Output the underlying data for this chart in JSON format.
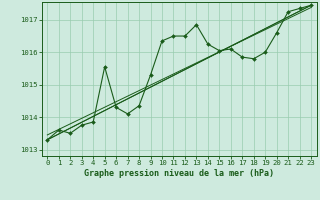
{
  "xlabel": "Graphe pression niveau de la mer (hPa)",
  "xlim": [
    -0.5,
    23.5
  ],
  "ylim": [
    1012.8,
    1017.55
  ],
  "yticks": [
    1013,
    1014,
    1015,
    1016,
    1017
  ],
  "xticks": [
    0,
    1,
    2,
    3,
    4,
    5,
    6,
    7,
    8,
    9,
    10,
    11,
    12,
    13,
    14,
    15,
    16,
    17,
    18,
    19,
    20,
    21,
    22,
    23
  ],
  "bg_color": "#ceeade",
  "grid_color": "#99ccb0",
  "line_color": "#1a5c1a",
  "line1_x": [
    0,
    1,
    2,
    3,
    4,
    5,
    6,
    7,
    8,
    9,
    10,
    11,
    12,
    13,
    14,
    15,
    16,
    17,
    18,
    19,
    20,
    21,
    22,
    23
  ],
  "line1_y": [
    1013.3,
    1013.6,
    1013.5,
    1013.75,
    1013.85,
    1015.55,
    1014.3,
    1014.1,
    1014.35,
    1015.3,
    1016.35,
    1016.5,
    1016.5,
    1016.85,
    1016.25,
    1016.05,
    1016.1,
    1015.85,
    1015.8,
    1016.0,
    1016.6,
    1017.25,
    1017.35,
    1017.45
  ],
  "straight_lines": [
    {
      "x": [
        0,
        23
      ],
      "y": [
        1013.3,
        1017.45
      ]
    },
    {
      "x": [
        0,
        23
      ],
      "y": [
        1013.3,
        1017.45
      ]
    },
    {
      "x": [
        0,
        23
      ],
      "y": [
        1013.45,
        1017.38
      ]
    }
  ],
  "tick_fontsize": 5.2,
  "xlabel_fontsize": 6.0
}
